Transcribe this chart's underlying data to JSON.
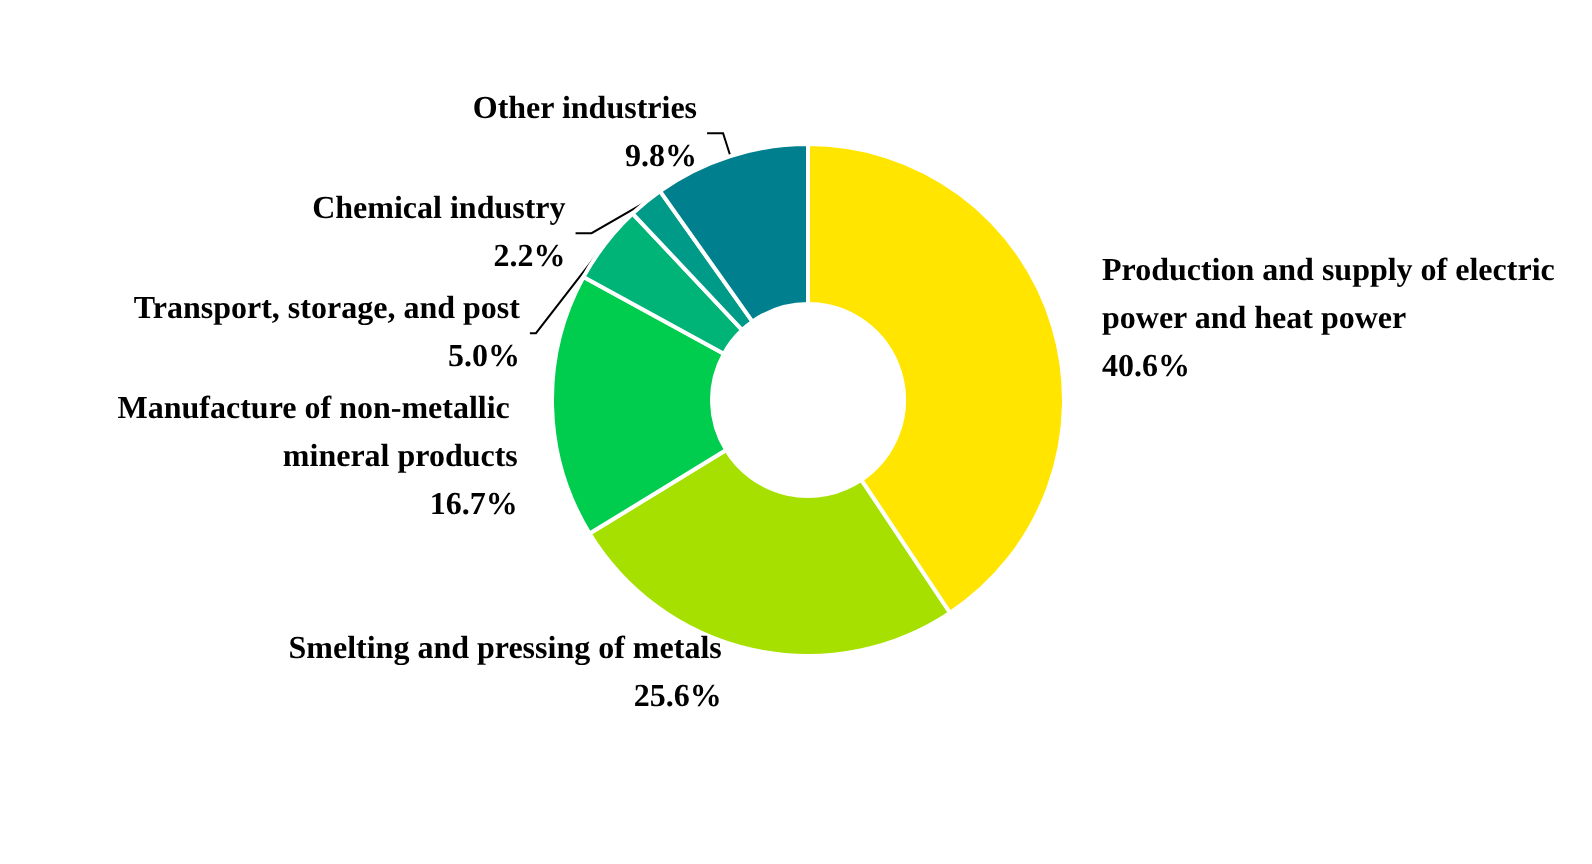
{
  "chart_data": {
    "type": "donut",
    "categories": [
      "Production and supply of electric power and heat power",
      "Smelting and pressing of metals",
      "Manufacture of non-metallic mineral products",
      "Transport, storage, and post",
      "Chemical industry",
      "Other industries"
    ],
    "values": [
      40.6,
      25.6,
      16.7,
      5.0,
      2.2,
      9.8
    ],
    "colors": [
      "#ffe500",
      "#a6e000",
      "#00cc4e",
      "#00b377",
      "#009a88",
      "#00808e"
    ],
    "value_labels": [
      "40.6%",
      "25.6%",
      "16.7%",
      "5.0%",
      "2.2%",
      "9.8%"
    ]
  }
}
